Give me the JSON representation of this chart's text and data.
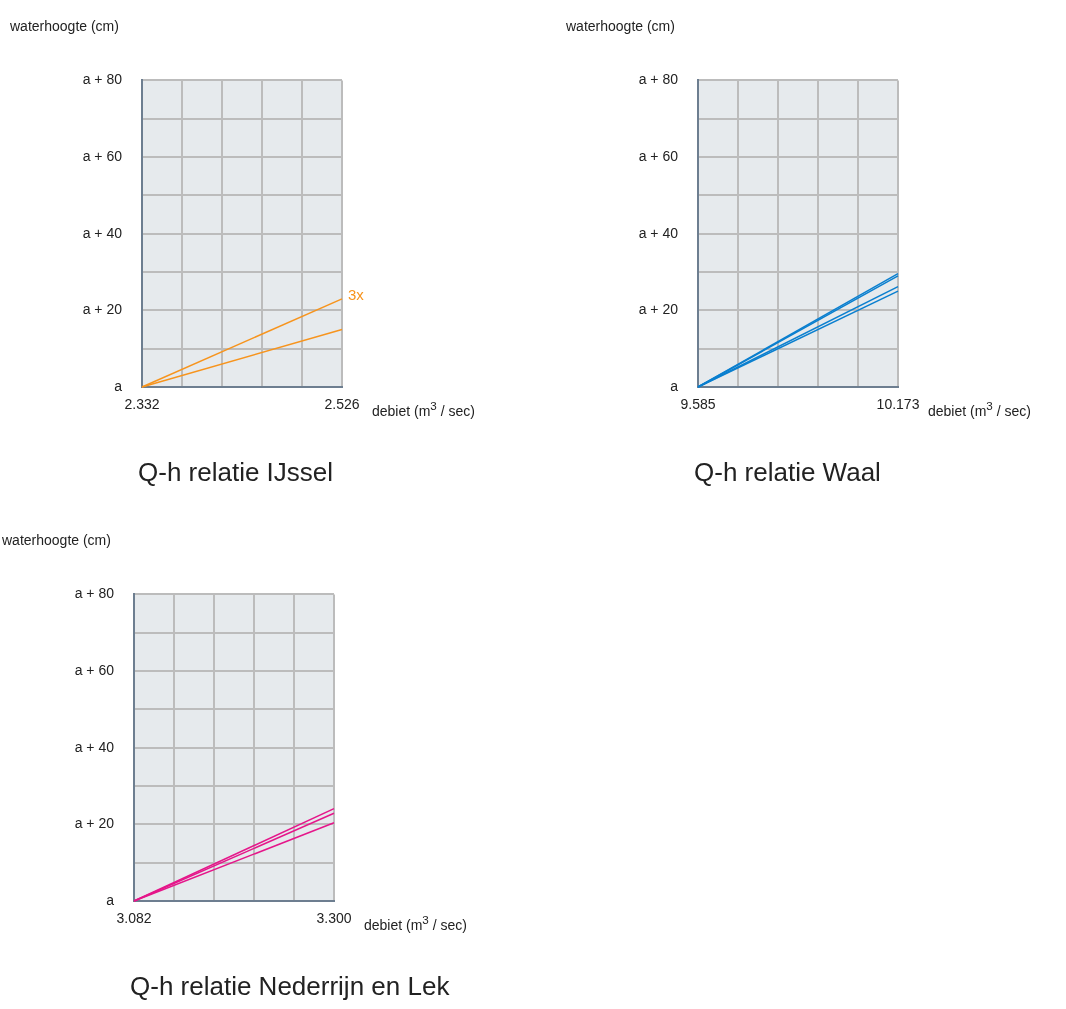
{
  "chart_data": [
    {
      "type": "line",
      "title": "Q-h relatie IJssel",
      "xlabel": "debiet (m$^{3}$ / sec)",
      "ylabel": "waterhoogte (cm)",
      "x": [
        2.332,
        2.526
      ],
      "xlim": [
        2.332,
        2.526
      ],
      "xticks": [
        2.332,
        {
          "value": 2.3708,
          "label": null
        },
        {
          "value": 2.4096,
          "label": null
        },
        {
          "value": 2.4484,
          "label": null
        },
        {
          "value": 2.4872,
          "label": null
        },
        2.526
      ],
      "ylim": [
        0,
        80
      ],
      "yticks": [
        {
          "value": 0,
          "label": "a"
        },
        {
          "value": 10,
          "label": null
        },
        {
          "value": 20,
          "label": "a + 20"
        },
        {
          "value": 30,
          "label": null
        },
        {
          "value": 40,
          "label": "a + 40"
        },
        {
          "value": 50,
          "label": null
        },
        {
          "value": 60,
          "label": "a + 60"
        },
        {
          "value": 70,
          "label": null
        },
        {
          "value": 80,
          "label": "a + 80"
        }
      ],
      "grid": true,
      "marker": "none",
      "series": [
        {
          "color": "#f7941d",
          "values": [
            0,
            23
          ]
        },
        {
          "color": "#f7941d",
          "values": [
            0,
            15
          ]
        }
      ],
      "annotations": [
        {
          "text": "3x",
          "x": 2.526,
          "y": 23
        }
      ]
    },
    {
      "type": "line",
      "title": "Q-h relatie Waal",
      "xlabel": "debiet (m$^{3}$ / sec)",
      "ylabel": "waterhoogte (cm)",
      "x": [
        9.585,
        10.173
      ],
      "xlim": [
        9.585,
        10.173
      ],
      "xticks": [
        9.585,
        {
          "value": 9.7026,
          "label": null
        },
        {
          "value": 9.8202,
          "label": null
        },
        {
          "value": 9.9378,
          "label": null
        },
        {
          "value": 10.0554,
          "label": null
        },
        10.173
      ],
      "ylim": [
        0,
        80
      ],
      "yticks": [
        {
          "value": 0,
          "label": "a"
        },
        {
          "value": 10,
          "label": null
        },
        {
          "value": 20,
          "label": "a + 20"
        },
        {
          "value": 30,
          "label": null
        },
        {
          "value": 40,
          "label": "a + 40"
        },
        {
          "value": 50,
          "label": null
        },
        {
          "value": 60,
          "label": "a + 60"
        },
        {
          "value": 70,
          "label": null
        },
        {
          "value": 80,
          "label": "a + 80"
        }
      ],
      "grid": true,
      "marker": "none",
      "series": [
        {
          "color": "#0a7fcf",
          "values": [
            0,
            29.6
          ]
        },
        {
          "color": "#0a7fcf",
          "values": [
            0,
            29
          ]
        },
        {
          "color": "#0a7fcf",
          "values": [
            0,
            26.2
          ]
        },
        {
          "color": "#0a7fcf",
          "values": [
            0,
            25
          ]
        }
      ]
    },
    {
      "type": "line",
      "title": "Q-h relatie Nederrijn en Lek",
      "xlabel": "debiet (m$^{3}$ / sec)",
      "ylabel": "waterhoogte (cm)",
      "x": [
        3.082,
        3.3
      ],
      "xlim": [
        3.082,
        3.3
      ],
      "xticks": [
        3.082,
        {
          "value": 3.1256,
          "label": null
        },
        {
          "value": 3.1692,
          "label": null
        },
        {
          "value": 3.2128,
          "label": null
        },
        {
          "value": 3.2564,
          "label": null
        },
        {
          "value": 3.3,
          "label": "3.300"
        }
      ],
      "ylim": [
        0,
        80
      ],
      "yticks": [
        {
          "value": 0,
          "label": "a"
        },
        {
          "value": 10,
          "label": null
        },
        {
          "value": 20,
          "label": "a + 20"
        },
        {
          "value": 30,
          "label": null
        },
        {
          "value": 40,
          "label": "a + 40"
        },
        {
          "value": 50,
          "label": null
        },
        {
          "value": 60,
          "label": "a + 60"
        },
        {
          "value": 70,
          "label": null
        },
        {
          "value": 80,
          "label": "a + 80"
        }
      ],
      "grid": true,
      "marker": "none",
      "series": [
        {
          "color": "#e5168a",
          "values": [
            0,
            24.1
          ]
        },
        {
          "color": "#e5168a",
          "values": [
            0,
            22.9
          ]
        },
        {
          "color": "#e5168a",
          "values": [
            0,
            20.4
          ]
        }
      ]
    }
  ]
}
